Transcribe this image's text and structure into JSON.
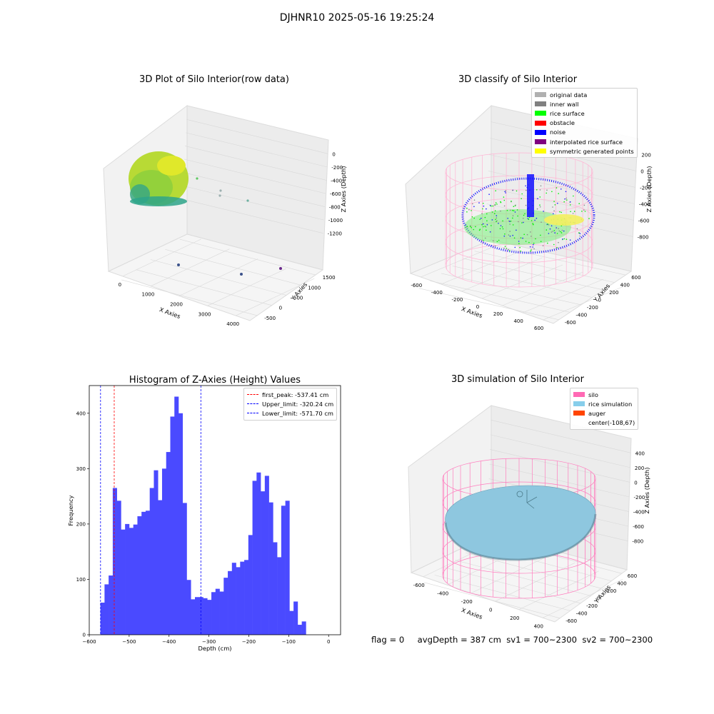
{
  "suptitle": "DJHNR10 2025-05-16 19:25:24",
  "panels": {
    "raw": {
      "title": "3D Plot of Silo Interior(row data)",
      "xlabel": "X Axies",
      "ylabel": "Y Axies",
      "zlabel": "Z Axies (Depth)",
      "xticks": [
        "0",
        "1000",
        "2000",
        "3000",
        "4000"
      ],
      "yticks": [
        "-500",
        "0",
        "500",
        "1000",
        "1500"
      ],
      "zticks": [
        "0",
        "-200",
        "-400",
        "-600",
        "-800",
        "-1000",
        "-1200"
      ],
      "colors": {
        "point_light": "#c8e020",
        "point_dark": "#1f9e89",
        "outlier": "#3b528b"
      }
    },
    "classify": {
      "title": "3D classify of Silo Interior",
      "xlabel": "X Axies",
      "ylabel": "Y Axies",
      "zlabel": "Z Axies (Depth)",
      "xticks": [
        "-600",
        "-400",
        "-200",
        "0",
        "200",
        "400",
        "600"
      ],
      "yticks": [
        "-600",
        "-400",
        "-200",
        "0",
        "200",
        "400",
        "600"
      ],
      "zticks": [
        "200",
        "0",
        "-200",
        "-400",
        "-600",
        "-800"
      ],
      "legend": [
        {
          "label": "original data",
          "color": "#b0b0b0"
        },
        {
          "label": "inner wall",
          "color": "#808080"
        },
        {
          "label": "rice surface",
          "color": "#00ff00"
        },
        {
          "label": "obstacle",
          "color": "#ff0000"
        },
        {
          "label": "noise",
          "color": "#0000ff"
        },
        {
          "label": "interpolated rice surface",
          "color": "#800080"
        },
        {
          "label": "symmetric generated points",
          "color": "#ffff00"
        }
      ]
    },
    "simulation": {
      "title": "3D simulation of Silo Interior",
      "xlabel": "X Axies",
      "ylabel": "Y Axies",
      "zlabel": "Z Axies (Depth)",
      "xticks": [
        "-600",
        "-400",
        "-200",
        "0",
        "200",
        "400"
      ],
      "yticks": [
        "-600",
        "-400",
        "-200",
        "0",
        "200",
        "400",
        "600"
      ],
      "zticks": [
        "400",
        "200",
        "0",
        "-200",
        "-400",
        "-600",
        "-800"
      ],
      "legend": [
        {
          "label": "silo",
          "color": "#ff69b4"
        },
        {
          "label": "rice simulation",
          "color": "#87ceeb"
        },
        {
          "label": "auger",
          "color": "#ff4500"
        },
        {
          "label": "center(-108,67)",
          "color": ""
        }
      ]
    }
  },
  "chart_data": {
    "type": "bar",
    "title": "Histogram of Z-Axies (Height) Values",
    "xlabel": "Depth (cm)",
    "ylabel": "Frequency",
    "xlim": [
      -600,
      30
    ],
    "ylim": [
      0,
      450
    ],
    "xticks": [
      -600,
      -500,
      -400,
      -300,
      -200,
      -100,
      0
    ],
    "yticks": [
      0,
      100,
      200,
      300,
      400
    ],
    "bar_color": "#4a4aff",
    "bin_start": -572,
    "bin_width": 10.3,
    "values": [
      58,
      91,
      107,
      265,
      242,
      190,
      200,
      193,
      199,
      214,
      222,
      224,
      265,
      297,
      243,
      300,
      330,
      394,
      430,
      400,
      238,
      99,
      64,
      68,
      68,
      66,
      63,
      77,
      83,
      78,
      103,
      115,
      130,
      122,
      132,
      135,
      180,
      278,
      293,
      259,
      287,
      239,
      167,
      140,
      233,
      242,
      43,
      60,
      18,
      24
    ],
    "lines": [
      {
        "label": "first_peak: -537.41 cm",
        "x": -537.41,
        "color": "#ff0000"
      },
      {
        "label": "Upper_limit: -320.24 cm",
        "x": -320.24,
        "color": "#0000ff"
      },
      {
        "label": "Lower_limit: -571.70 cm",
        "x": -571.7,
        "color": "#0000ff"
      }
    ]
  },
  "footer": {
    "flag": "flag = 0",
    "avg": "avgDepth = 387 cm",
    "sv1": "sv1 = 700~2300",
    "sv2": "sv2 = 700~2300"
  }
}
